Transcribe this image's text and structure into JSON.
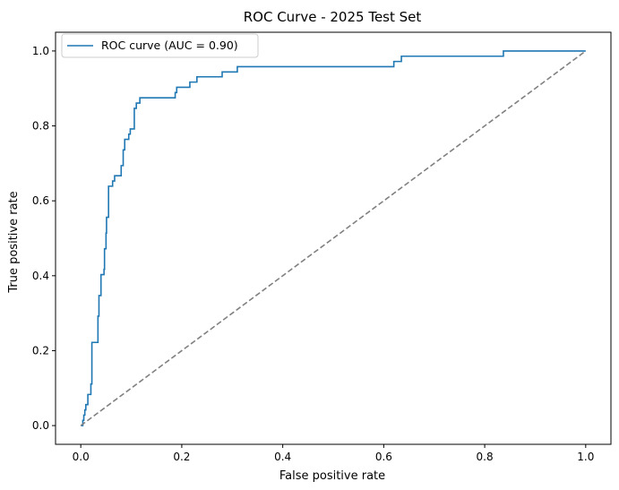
{
  "chart_data": {
    "type": "line",
    "title": "ROC Curve - 2025 Test Set",
    "xlabel": "False positive rate",
    "ylabel": "True positive rate",
    "xlim": [
      -0.05,
      1.05
    ],
    "ylim": [
      -0.05,
      1.05
    ],
    "xticks": [
      "0.0",
      "0.2",
      "0.4",
      "0.6",
      "0.8",
      "1.0"
    ],
    "yticks": [
      "0.0",
      "0.2",
      "0.4",
      "0.6",
      "0.8",
      "1.0"
    ],
    "grid": false,
    "legend_position": "top-left",
    "series": [
      {
        "name": "ROC curve (AUC = 0.90)",
        "color": "#1f77b4",
        "style": "solid",
        "x": [
          0.0,
          0.004,
          0.006,
          0.008,
          0.01,
          0.014,
          0.02,
          0.022,
          0.034,
          0.036,
          0.04,
          0.046,
          0.047,
          0.05,
          0.051,
          0.055,
          0.063,
          0.067,
          0.08,
          0.084,
          0.087,
          0.095,
          0.097,
          0.098,
          0.106,
          0.11,
          0.117,
          0.12,
          0.127,
          0.128,
          0.133,
          0.14,
          0.187,
          0.19,
          0.216,
          0.23,
          0.24,
          0.28,
          0.31,
          0.605,
          0.62,
          0.635,
          0.833,
          0.837,
          1.0
        ],
        "y": [
          0.0,
          0.014,
          0.028,
          0.042,
          0.056,
          0.083,
          0.111,
          0.222,
          0.292,
          0.347,
          0.403,
          0.417,
          0.472,
          0.514,
          0.556,
          0.639,
          0.653,
          0.667,
          0.694,
          0.736,
          0.764,
          0.778,
          0.778,
          0.792,
          0.847,
          0.861,
          0.875,
          0.875,
          0.875,
          0.875,
          0.875,
          0.875,
          0.889,
          0.903,
          0.917,
          0.931,
          0.931,
          0.944,
          0.958,
          0.958,
          0.972,
          0.986,
          0.986,
          1.0,
          1.0
        ]
      },
      {
        "name": "",
        "color": "#808080",
        "style": "dashed",
        "x": [
          0.0,
          1.0
        ],
        "y": [
          0.0,
          1.0
        ]
      }
    ]
  }
}
